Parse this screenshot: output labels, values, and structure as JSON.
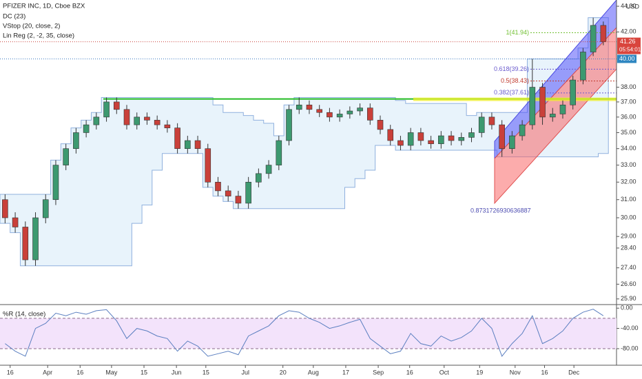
{
  "chart_data": [
    {
      "type": "candlestick",
      "title": "PFIZER INC, 1D, Cboe BZX",
      "indicators": [
        "DC (23)",
        "VStop (20, close, 2)",
        "Lin Reg (2, -2, 35, close)"
      ],
      "currency": "USD",
      "log_scale": true,
      "ylim": [
        25.7,
        44.5
      ],
      "yticks": [
        {
          "value": 44,
          "label": "44.00"
        },
        {
          "value": 42,
          "label": "42.00"
        },
        {
          "value": 38,
          "label": "38.00"
        },
        {
          "value": 37,
          "label": "37.00"
        },
        {
          "value": 36,
          "label": "36.00"
        },
        {
          "value": 35,
          "label": "35.00"
        },
        {
          "value": 34,
          "label": "34.00"
        },
        {
          "value": 33,
          "label": "33.00"
        },
        {
          "value": 32,
          "label": "32.00"
        },
        {
          "value": 31,
          "label": "31.00"
        },
        {
          "value": 30,
          "label": "30.00"
        },
        {
          "value": 29,
          "label": "29.00"
        },
        {
          "value": 28.4,
          "label": "28.40"
        },
        {
          "value": 27.4,
          "label": "27.40"
        },
        {
          "value": 26.6,
          "label": "26.60"
        },
        {
          "value": 25.9,
          "label": "25.90"
        }
      ],
      "xlim": [
        -0.5,
        60.3
      ],
      "xticks": [
        {
          "value": 0.5,
          "label": "16"
        },
        {
          "value": 4.2,
          "label": "Apr"
        },
        {
          "value": 7.4,
          "label": "16"
        },
        {
          "value": 10.5,
          "label": "May"
        },
        {
          "value": 13.7,
          "label": "15"
        },
        {
          "value": 16.9,
          "label": "Jun"
        },
        {
          "value": 19.8,
          "label": "15"
        },
        {
          "value": 23.7,
          "label": "Jul"
        },
        {
          "value": 27.4,
          "label": "20"
        },
        {
          "value": 30.4,
          "label": "Aug"
        },
        {
          "value": 33.6,
          "label": "17"
        },
        {
          "value": 36.8,
          "label": "Sep"
        },
        {
          "value": 39.9,
          "label": "16"
        },
        {
          "value": 43.3,
          "label": "Oct"
        },
        {
          "value": 46.8,
          "label": "19"
        },
        {
          "value": 50.3,
          "label": "Nov"
        },
        {
          "value": 53.2,
          "label": "16"
        },
        {
          "value": 56.1,
          "label": "Dec"
        }
      ],
      "up_color": "#3d9970",
      "down_color": "#c9403a",
      "open": [
        31.0,
        30.0,
        29.5,
        27.8,
        30.0,
        31.0,
        33.0,
        34.0,
        35.0,
        35.5,
        36.0,
        37.0,
        36.5,
        35.5,
        36.0,
        35.8,
        35.5,
        35.3,
        34.0,
        34.5,
        34.0,
        32.0,
        31.5,
        31.2,
        30.8,
        32.0,
        32.5,
        33.0,
        34.5,
        36.5,
        36.8,
        36.5,
        36.3,
        36.0,
        36.2,
        36.4,
        36.6,
        35.8,
        35.2,
        34.5,
        34.2,
        35.0,
        34.5,
        34.3,
        34.8,
        34.5,
        34.7,
        35.0,
        36.0,
        35.5,
        34.0,
        34.8,
        35.5,
        38.0,
        36.0,
        36.2,
        36.8,
        38.5,
        40.5,
        42.5
      ],
      "high": [
        31.3,
        30.3,
        29.8,
        30.3,
        31.3,
        33.3,
        34.3,
        35.3,
        35.8,
        36.3,
        37.3,
        37.3,
        36.8,
        36.3,
        36.3,
        36.1,
        35.8,
        35.6,
        34.8,
        34.8,
        34.3,
        32.3,
        31.8,
        31.5,
        32.3,
        32.8,
        33.3,
        34.8,
        36.8,
        37.3,
        37.1,
        36.8,
        36.6,
        36.5,
        36.7,
        36.9,
        36.9,
        36.1,
        35.5,
        34.8,
        35.3,
        35.3,
        34.8,
        35.1,
        35.1,
        35.0,
        35.3,
        36.3,
        36.3,
        35.8,
        35.1,
        35.8,
        40.0,
        38.3,
        36.6,
        37.1,
        38.8,
        40.8,
        43.1,
        42.8
      ],
      "low": [
        29.7,
        29.2,
        27.5,
        27.5,
        29.7,
        30.7,
        32.7,
        33.7,
        34.7,
        35.2,
        35.7,
        36.2,
        35.2,
        35.2,
        35.5,
        35.2,
        35.0,
        33.7,
        33.7,
        33.7,
        31.7,
        31.2,
        30.9,
        30.5,
        30.5,
        31.7,
        32.2,
        32.7,
        34.2,
        36.2,
        36.2,
        36.0,
        35.7,
        35.7,
        35.9,
        36.1,
        35.5,
        34.9,
        34.2,
        33.9,
        33.9,
        34.2,
        34.0,
        34.0,
        34.2,
        34.2,
        34.4,
        34.7,
        35.2,
        33.5,
        33.7,
        34.5,
        35.2,
        35.5,
        35.7,
        35.9,
        36.5,
        38.2,
        40.2,
        41.0
      ],
      "close": [
        30.0,
        29.5,
        27.8,
        30.0,
        31.0,
        33.0,
        34.0,
        35.0,
        35.5,
        36.0,
        37.0,
        36.5,
        35.5,
        36.0,
        35.8,
        35.5,
        35.3,
        34.0,
        34.5,
        34.0,
        32.0,
        31.5,
        31.2,
        30.8,
        32.0,
        32.5,
        33.0,
        34.5,
        36.5,
        36.8,
        36.5,
        36.3,
        36.0,
        36.2,
        36.4,
        36.6,
        35.8,
        35.2,
        34.5,
        34.2,
        35.0,
        34.5,
        34.3,
        34.8,
        34.5,
        34.7,
        35.0,
        36.0,
        35.5,
        34.0,
        34.8,
        35.5,
        38.0,
        36.0,
        36.2,
        36.8,
        38.5,
        40.5,
        42.5,
        41.26
      ],
      "countdown": "05:54:01",
      "price_line": {
        "value": 40,
        "label": "40.00"
      },
      "resistance": 37.2,
      "fib_levels": [
        {
          "label": "1(41.94)",
          "value": 41.94,
          "color": "#6fbf2f"
        },
        {
          "label": "0.618(39.26)",
          "value": 39.26,
          "color": "#6a5acd"
        },
        {
          "label": "0.5(38.43)",
          "value": 38.43,
          "color": "#c0392b"
        },
        {
          "label": "0.382(37.61)",
          "value": 37.61,
          "color": "#6a5acd"
        }
      ],
      "annotation": "0.8731726930636887"
    },
    {
      "type": "line",
      "title": "%R (14, close)",
      "color": "#5b7fc0",
      "ylim": [
        -110,
        3
      ],
      "yticks": [
        {
          "value": 0,
          "label": "0.00"
        },
        {
          "value": -40,
          "label": "-40.00"
        },
        {
          "value": -80,
          "label": "-80.00"
        }
      ],
      "bands": [
        -20,
        -80
      ],
      "values": [
        -70,
        -85,
        -95,
        -40,
        -30,
        -10,
        -15,
        -8,
        -12,
        -5,
        -3,
        -25,
        -60,
        -40,
        -45,
        -55,
        -60,
        -85,
        -65,
        -75,
        -95,
        -90,
        -85,
        -92,
        -55,
        -45,
        -35,
        -15,
        -5,
        -8,
        -20,
        -28,
        -40,
        -35,
        -28,
        -22,
        -60,
        -75,
        -90,
        -85,
        -50,
        -70,
        -75,
        -55,
        -65,
        -58,
        -45,
        -20,
        -40,
        -95,
        -70,
        -50,
        -15,
        -70,
        -60,
        -45,
        -20,
        -8,
        -2,
        -15
      ]
    }
  ]
}
